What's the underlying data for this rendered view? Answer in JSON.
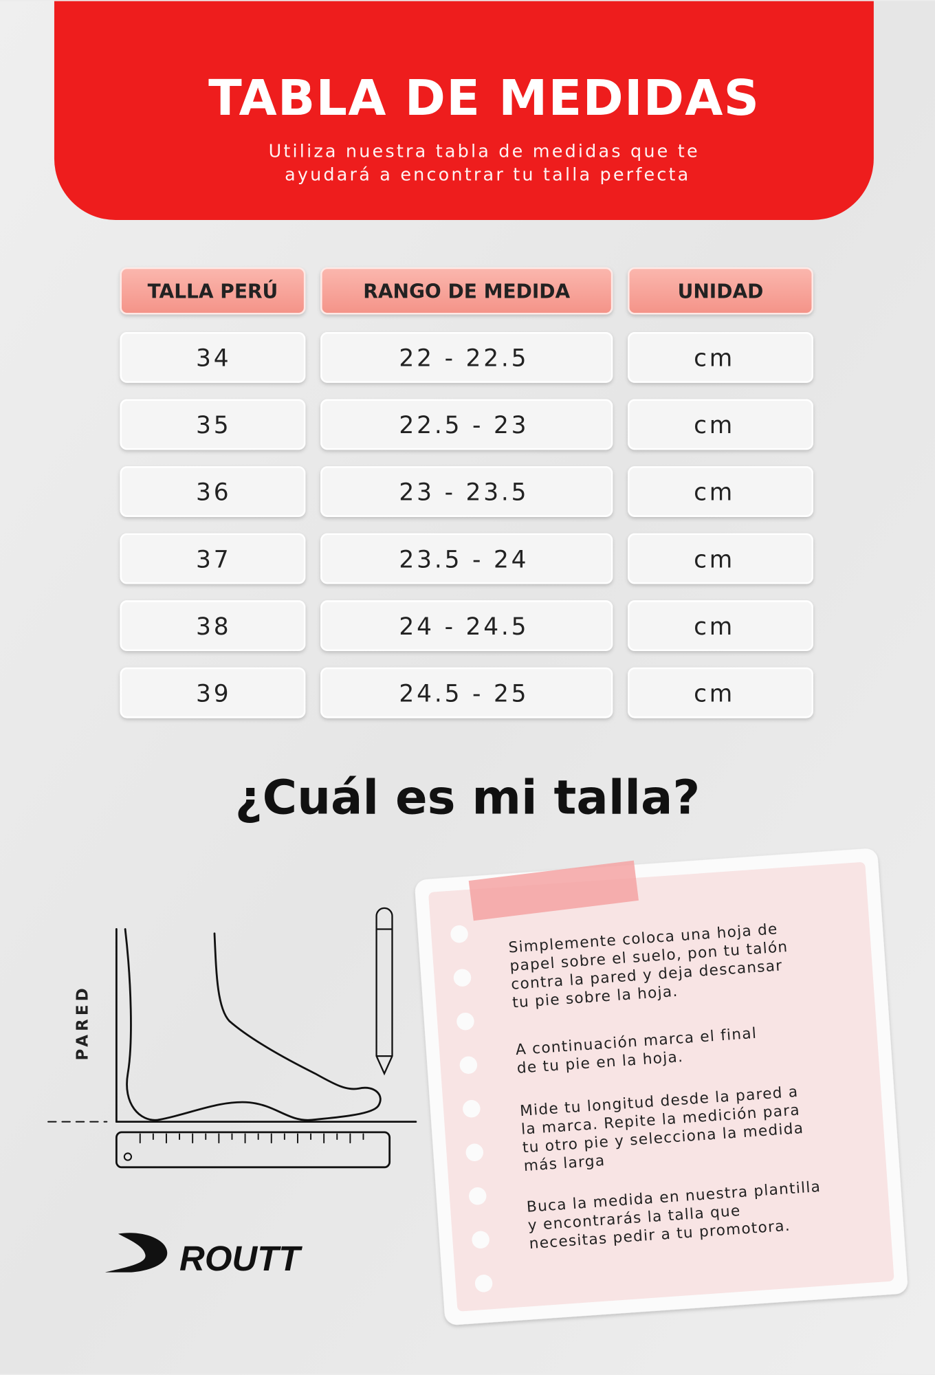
{
  "header": {
    "title": "TABLA DE MEDIDAS",
    "subtitle": [
      "Utiliza nuestra tabla de medidas que te",
      "ayudará a encontrar tu talla perfecta"
    ]
  },
  "table": {
    "headers": [
      "TALLA PERÚ",
      "RANGO DE MEDIDA",
      "UNIDAD"
    ],
    "rows": [
      [
        "34",
        "22 - 22.5",
        "cm"
      ],
      [
        "35",
        "22.5 - 23",
        "cm"
      ],
      [
        "36",
        "23 - 23.5",
        "cm"
      ],
      [
        "37",
        "23.5 - 24",
        "cm"
      ],
      [
        "38",
        "24 - 24.5",
        "cm"
      ],
      [
        "39",
        "24.5 - 25",
        "cm"
      ]
    ]
  },
  "section": {
    "title": "¿Cuál es mi talla?"
  },
  "illustration": {
    "wall_label": "PARED"
  },
  "note": {
    "paragraphs": [
      [
        "Simplemente coloca una hoja de",
        "papel sobre el suelo, pon tu talón",
        "contra la pared y deja descansar",
        "tu pie sobre la hoja."
      ],
      [
        "A continuación marca el final",
        "de tu pie en la hoja."
      ],
      [
        "Mide tu longitud desde la pared a",
        "la marca. Repite la medición para",
        "tu otro pie y selecciona la medida",
        "más larga"
      ],
      [
        "Buca la medida en nuestra plantilla",
        "y encontrarás la talla que",
        "necesitas pedir a tu promotora."
      ]
    ]
  },
  "logo": {
    "text": "ROUTT"
  }
}
